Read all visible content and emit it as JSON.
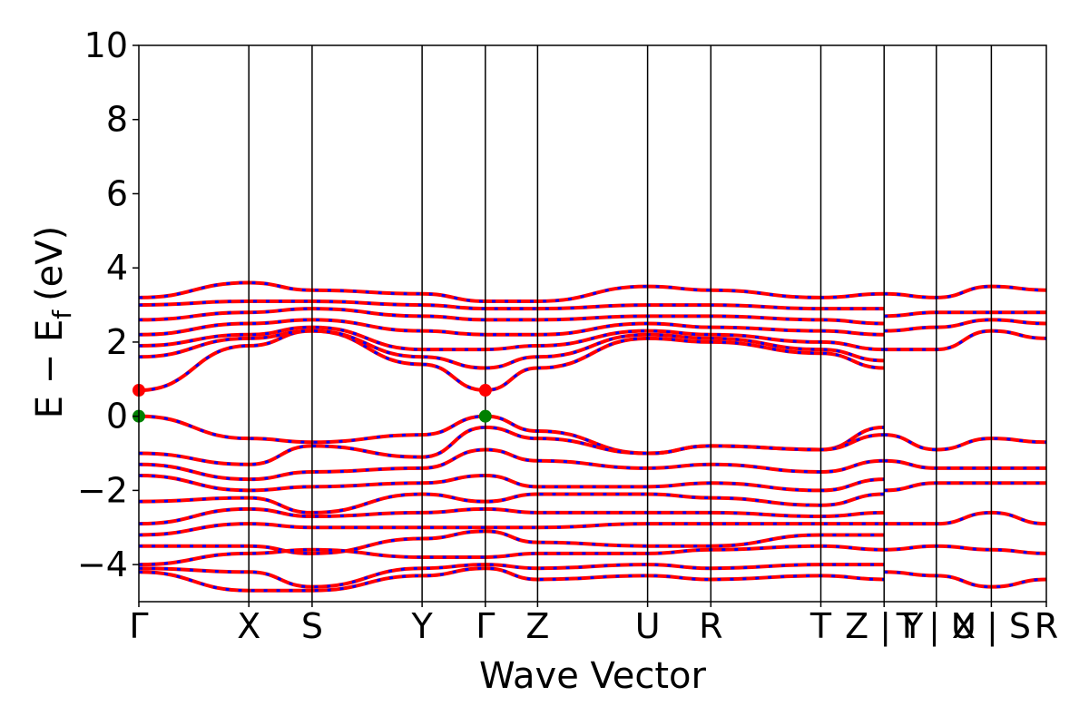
{
  "chart_data": {
    "type": "line",
    "title": "",
    "xlabel": "Wave Vector",
    "ylabel": "E − E",
    "ylabel_subscript": "f",
    "ylabel_unit": "(eV)",
    "ylim": [
      -5,
      10
    ],
    "yticks": [
      -4,
      -2,
      0,
      2,
      4,
      6,
      8,
      10
    ],
    "ytick_labels": [
      "−4",
      "−2",
      "0",
      "2",
      "4",
      "6",
      "8",
      "10"
    ],
    "xlim": [
      0,
      16.5
    ],
    "kpoint_ticks": [
      {
        "x": 0.0,
        "label": "Γ"
      },
      {
        "x": 2.0,
        "label": "X"
      },
      {
        "x": 3.15,
        "label": "S"
      },
      {
        "x": 5.15,
        "label": "Y"
      },
      {
        "x": 6.3,
        "label": "Γ"
      },
      {
        "x": 7.25,
        "label": "Z"
      },
      {
        "x": 9.25,
        "label": "U"
      },
      {
        "x": 10.4,
        "label": "R"
      },
      {
        "x": 12.4,
        "label": "T"
      },
      {
        "x": 13.55,
        "label": "Z | Y"
      },
      {
        "x": 14.5,
        "label": "T | U"
      },
      {
        "x": 15.5,
        "label": "X | S"
      },
      {
        "x": 16.5,
        "label": "R"
      }
    ],
    "series_colors": {
      "spin_up": "#ff0000",
      "spin_down": "#0000ff"
    },
    "markers": [
      {
        "x": 0.0,
        "y": 0.7,
        "color": "#ff0000"
      },
      {
        "x": 6.3,
        "y": 0.7,
        "color": "#ff0000"
      },
      {
        "x": 0.0,
        "y": 0.0,
        "color": "#008000"
      },
      {
        "x": 6.3,
        "y": 0.0,
        "color": "#008000"
      }
    ],
    "bands": [
      {
        "x": [
          0,
          2,
          3.15,
          5.15,
          6.3,
          7.25,
          9.25,
          10.4,
          12.4,
          13.55
        ],
        "y": [
          0.7,
          1.9,
          2.3,
          1.4,
          0.7,
          1.3,
          2.1,
          2.0,
          1.7,
          1.3
        ]
      },
      {
        "x": [
          0,
          2,
          3.15,
          5.15,
          6.3,
          7.25,
          9.25,
          10.4,
          12.4,
          13.55
        ],
        "y": [
          1.6,
          2.1,
          2.3,
          1.6,
          1.3,
          1.6,
          2.2,
          2.1,
          1.8,
          1.5
        ]
      },
      {
        "x": [
          0,
          2,
          3.15,
          5.15,
          6.3,
          7.25,
          9.25,
          10.4,
          12.4,
          13.55
        ],
        "y": [
          1.9,
          2.2,
          2.4,
          1.8,
          1.8,
          1.9,
          2.3,
          2.2,
          2.0,
          1.8
        ]
      },
      {
        "x": [
          0,
          2,
          3.15,
          5.15,
          6.3,
          7.25,
          9.25,
          10.4,
          12.4,
          13.55
        ],
        "y": [
          2.2,
          2.5,
          2.6,
          2.3,
          2.2,
          2.2,
          2.5,
          2.4,
          2.3,
          2.2
        ]
      },
      {
        "x": [
          0,
          2,
          3.15,
          5.15,
          6.3,
          7.25,
          9.25,
          10.4,
          12.4,
          13.55
        ],
        "y": [
          2.6,
          2.8,
          2.9,
          2.7,
          2.6,
          2.6,
          2.7,
          2.7,
          2.6,
          2.5
        ]
      },
      {
        "x": [
          0,
          2,
          3.15,
          5.15,
          6.3,
          7.25,
          9.25,
          10.4,
          12.4,
          13.55
        ],
        "y": [
          3.0,
          3.1,
          3.1,
          3.0,
          2.9,
          2.9,
          3.0,
          3.0,
          2.9,
          2.9
        ]
      },
      {
        "x": [
          0,
          2,
          3.15,
          5.15,
          6.3,
          7.25,
          9.25,
          10.4,
          12.4,
          13.55
        ],
        "y": [
          3.2,
          3.6,
          3.4,
          3.3,
          3.1,
          3.1,
          3.5,
          3.4,
          3.2,
          3.3
        ]
      },
      {
        "x": [
          13.55,
          14.5,
          15.5,
          16.5
        ],
        "y": [
          1.8,
          1.8,
          2.3,
          2.1
        ]
      },
      {
        "x": [
          13.55,
          14.5,
          15.5,
          16.5
        ],
        "y": [
          2.3,
          2.4,
          2.6,
          2.5
        ]
      },
      {
        "x": [
          13.55,
          14.5,
          15.5,
          16.5
        ],
        "y": [
          2.7,
          2.8,
          2.8,
          2.8
        ]
      },
      {
        "x": [
          13.55,
          14.5,
          15.5,
          16.5
        ],
        "y": [
          3.3,
          3.2,
          3.5,
          3.4
        ]
      },
      {
        "x": [
          0,
          2,
          3.15,
          5.15,
          6.3,
          7.25,
          9.25,
          10.4,
          12.4,
          13.55
        ],
        "y": [
          0.0,
          -0.6,
          -0.7,
          -0.5,
          0.0,
          -0.4,
          -1.0,
          -0.8,
          -0.9,
          -0.3
        ]
      },
      {
        "x": [
          0,
          2,
          3.15,
          5.15,
          6.3,
          7.25,
          9.25,
          10.4,
          12.4,
          13.55
        ],
        "y": [
          -1.0,
          -1.3,
          -0.8,
          -1.1,
          -0.3,
          -0.6,
          -1.0,
          -0.8,
          -0.9,
          -0.5
        ]
      },
      {
        "x": [
          0,
          2,
          3.15,
          5.15,
          6.3,
          7.25,
          9.25,
          10.4,
          12.4,
          13.55
        ],
        "y": [
          -1.3,
          -1.7,
          -1.5,
          -1.4,
          -0.9,
          -1.2,
          -1.4,
          -1.3,
          -1.5,
          -1.2
        ]
      },
      {
        "x": [
          0,
          2,
          3.15,
          5.15,
          6.3,
          7.25,
          9.25,
          10.4,
          12.4,
          13.55
        ],
        "y": [
          -1.6,
          -2.0,
          -1.9,
          -1.8,
          -1.6,
          -1.9,
          -1.9,
          -1.8,
          -2.0,
          -1.7
        ]
      },
      {
        "x": [
          0,
          2,
          3.15,
          5.15,
          6.3,
          7.25,
          9.25,
          10.4,
          12.4,
          13.55
        ],
        "y": [
          -2.3,
          -2.2,
          -2.6,
          -2.1,
          -2.3,
          -2.1,
          -2.1,
          -2.2,
          -2.4,
          -2.1
        ]
      },
      {
        "x": [
          0,
          2,
          3.15,
          5.15,
          6.3,
          7.25,
          9.25,
          10.4,
          12.4,
          13.55
        ],
        "y": [
          -2.9,
          -2.5,
          -2.7,
          -2.6,
          -2.5,
          -2.6,
          -2.6,
          -2.6,
          -2.7,
          -2.6
        ]
      },
      {
        "x": [
          0,
          2,
          3.15,
          5.15,
          6.3,
          7.25,
          9.25,
          10.4,
          12.4,
          13.55
        ],
        "y": [
          -3.2,
          -2.9,
          -3.0,
          -3.0,
          -3.0,
          -3.0,
          -2.9,
          -2.9,
          -2.9,
          -2.9
        ]
      },
      {
        "x": [
          0,
          2,
          3.15,
          5.15,
          6.3,
          7.25,
          9.25,
          10.4,
          12.4,
          13.55
        ],
        "y": [
          -3.5,
          -3.5,
          -3.7,
          -3.3,
          -3.1,
          -3.4,
          -3.5,
          -3.5,
          -3.2,
          -3.2
        ]
      },
      {
        "x": [
          0,
          2,
          3.15,
          5.15,
          6.3,
          7.25,
          9.25,
          10.4,
          12.4,
          13.55
        ],
        "y": [
          -4.0,
          -3.7,
          -3.6,
          -3.8,
          -3.8,
          -3.7,
          -3.7,
          -3.6,
          -3.5,
          -3.6
        ]
      },
      {
        "x": [
          0,
          2,
          3.15,
          5.15,
          6.3,
          7.25,
          9.25,
          10.4,
          12.4,
          13.55
        ],
        "y": [
          -4.1,
          -4.2,
          -4.6,
          -4.1,
          -4.0,
          -4.1,
          -4.0,
          -4.1,
          -4.0,
          -4.0
        ]
      },
      {
        "x": [
          0,
          2,
          3.15,
          5.15,
          6.3,
          7.25,
          9.25,
          10.4,
          12.4,
          13.55
        ],
        "y": [
          -4.2,
          -4.7,
          -4.7,
          -4.3,
          -4.1,
          -4.4,
          -4.3,
          -4.4,
          -4.3,
          -4.4
        ]
      },
      {
        "x": [
          13.55,
          14.5,
          15.5,
          16.5
        ],
        "y": [
          -0.5,
          -0.9,
          -0.6,
          -0.7
        ]
      },
      {
        "x": [
          13.55,
          14.5,
          15.5,
          16.5
        ],
        "y": [
          -1.2,
          -1.4,
          -1.4,
          -1.4
        ]
      },
      {
        "x": [
          13.55,
          14.5,
          15.5,
          16.5
        ],
        "y": [
          -2.0,
          -1.8,
          -1.8,
          -1.8
        ]
      },
      {
        "x": [
          13.55,
          14.5,
          15.5,
          16.5
        ],
        "y": [
          -2.9,
          -2.9,
          -2.6,
          -2.9
        ]
      },
      {
        "x": [
          13.55,
          14.5,
          15.5,
          16.5
        ],
        "y": [
          -3.6,
          -3.5,
          -3.6,
          -3.7
        ]
      },
      {
        "x": [
          13.55,
          14.5,
          15.5,
          16.5
        ],
        "y": [
          -4.2,
          -4.3,
          -4.6,
          -4.4
        ]
      }
    ]
  }
}
